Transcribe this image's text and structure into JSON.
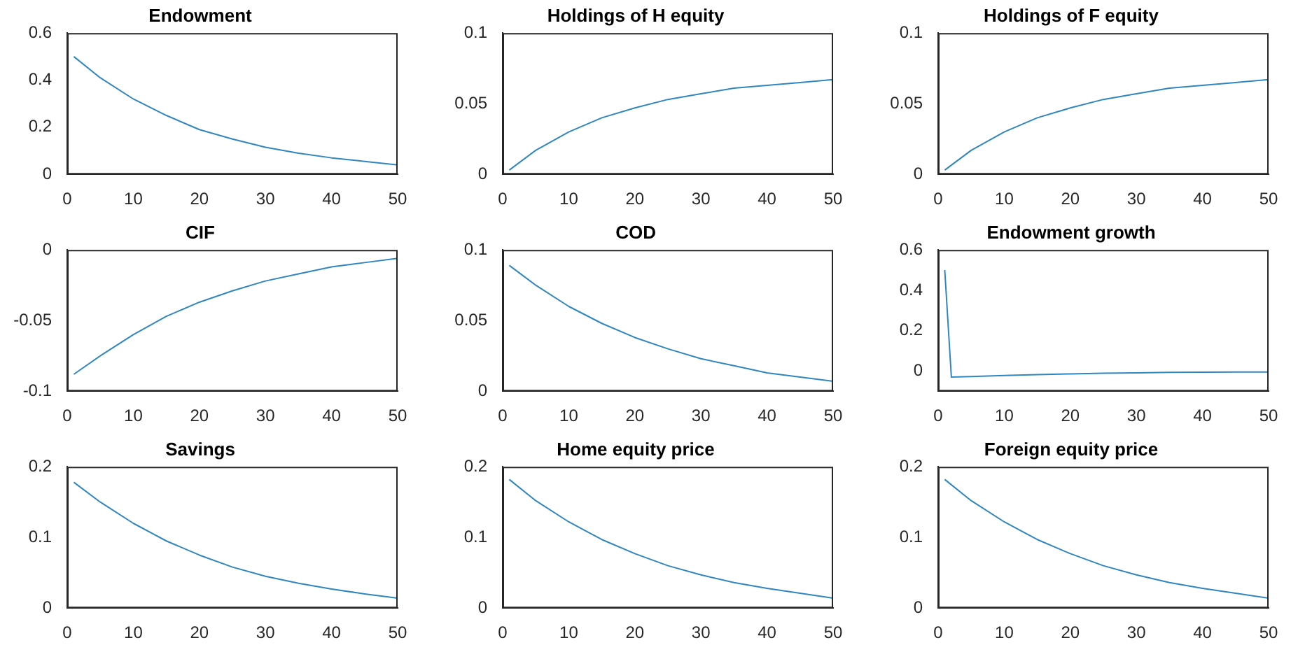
{
  "chart_data": [
    {
      "type": "line",
      "title": "Endowment",
      "x": [
        1,
        5,
        10,
        15,
        20,
        25,
        30,
        35,
        40,
        45,
        50
      ],
      "values": [
        0.5,
        0.41,
        0.32,
        0.25,
        0.19,
        0.15,
        0.115,
        0.09,
        0.07,
        0.055,
        0.04
      ],
      "color": "#2f86c0",
      "xlim": [
        0,
        50
      ],
      "xticks": [
        0,
        10,
        20,
        30,
        40,
        50
      ],
      "ylim": [
        0,
        0.6
      ],
      "yticks": [
        0,
        0.2,
        0.4,
        0.6
      ]
    },
    {
      "type": "line",
      "title": "Holdings of H equity",
      "x": [
        1,
        5,
        10,
        15,
        20,
        25,
        30,
        35,
        40,
        45,
        50
      ],
      "values": [
        0.003,
        0.017,
        0.03,
        0.04,
        0.047,
        0.053,
        0.057,
        0.061,
        0.063,
        0.065,
        0.067
      ],
      "color": "#2f86c0",
      "xlim": [
        0,
        50
      ],
      "xticks": [
        0,
        10,
        20,
        30,
        40,
        50
      ],
      "ylim": [
        0,
        0.1
      ],
      "yticks": [
        0,
        0.05,
        0.1
      ]
    },
    {
      "type": "line",
      "title": "Holdings of F equity",
      "x": [
        1,
        5,
        10,
        15,
        20,
        25,
        30,
        35,
        40,
        45,
        50
      ],
      "values": [
        0.003,
        0.017,
        0.03,
        0.04,
        0.047,
        0.053,
        0.057,
        0.061,
        0.063,
        0.065,
        0.067
      ],
      "color": "#2f86c0",
      "xlim": [
        0,
        50
      ],
      "xticks": [
        0,
        10,
        20,
        30,
        40,
        50
      ],
      "ylim": [
        0,
        0.1
      ],
      "yticks": [
        0,
        0.05,
        0.1
      ]
    },
    {
      "type": "line",
      "title": "CIF",
      "x": [
        1,
        5,
        10,
        15,
        20,
        25,
        30,
        35,
        40,
        45,
        50
      ],
      "values": [
        -0.088,
        -0.075,
        -0.06,
        -0.047,
        -0.037,
        -0.029,
        -0.022,
        -0.017,
        -0.012,
        -0.009,
        -0.006
      ],
      "color": "#2f86c0",
      "xlim": [
        0,
        50
      ],
      "xticks": [
        0,
        10,
        20,
        30,
        40,
        50
      ],
      "ylim": [
        -0.1,
        0
      ],
      "yticks": [
        -0.1,
        -0.05,
        0
      ]
    },
    {
      "type": "line",
      "title": "COD",
      "x": [
        1,
        5,
        10,
        15,
        20,
        25,
        30,
        35,
        40,
        45,
        50
      ],
      "values": [
        0.089,
        0.075,
        0.06,
        0.048,
        0.038,
        0.03,
        0.023,
        0.018,
        0.013,
        0.01,
        0.007
      ],
      "color": "#2f86c0",
      "xlim": [
        0,
        50
      ],
      "xticks": [
        0,
        10,
        20,
        30,
        40,
        50
      ],
      "ylim": [
        0,
        0.1
      ],
      "yticks": [
        0,
        0.05,
        0.1
      ]
    },
    {
      "type": "line",
      "title": "Endowment growth",
      "x": [
        1,
        2,
        5,
        10,
        15,
        20,
        25,
        30,
        35,
        40,
        45,
        50
      ],
      "values": [
        0.5,
        -0.03,
        -0.027,
        -0.022,
        -0.018,
        -0.014,
        -0.011,
        -0.009,
        -0.007,
        -0.006,
        -0.005,
        -0.005
      ],
      "color": "#2f86c0",
      "xlim": [
        0,
        50
      ],
      "xticks": [
        0,
        10,
        20,
        30,
        40,
        50
      ],
      "ylim": [
        -0.1,
        0.6
      ],
      "yticks": [
        0,
        0.2,
        0.4,
        0.6
      ]
    },
    {
      "type": "line",
      "title": "Savings",
      "x": [
        1,
        5,
        10,
        15,
        20,
        25,
        30,
        35,
        40,
        45,
        50
      ],
      "values": [
        0.178,
        0.15,
        0.12,
        0.095,
        0.075,
        0.058,
        0.045,
        0.035,
        0.027,
        0.02,
        0.014
      ],
      "color": "#2f86c0",
      "xlim": [
        0,
        50
      ],
      "xticks": [
        0,
        10,
        20,
        30,
        40,
        50
      ],
      "ylim": [
        0,
        0.2
      ],
      "yticks": [
        0,
        0.1,
        0.2
      ]
    },
    {
      "type": "line",
      "title": "Home equity price",
      "x": [
        1,
        5,
        10,
        15,
        20,
        25,
        30,
        35,
        40,
        45,
        50
      ],
      "values": [
        0.182,
        0.152,
        0.122,
        0.097,
        0.077,
        0.06,
        0.047,
        0.036,
        0.028,
        0.021,
        0.014
      ],
      "color": "#2f86c0",
      "xlim": [
        0,
        50
      ],
      "xticks": [
        0,
        10,
        20,
        30,
        40,
        50
      ],
      "ylim": [
        0,
        0.2
      ],
      "yticks": [
        0,
        0.1,
        0.2
      ]
    },
    {
      "type": "line",
      "title": "Foreign equity price",
      "x": [
        1,
        5,
        10,
        15,
        20,
        25,
        30,
        35,
        40,
        45,
        50
      ],
      "values": [
        0.182,
        0.152,
        0.122,
        0.097,
        0.077,
        0.06,
        0.047,
        0.036,
        0.028,
        0.021,
        0.014
      ],
      "color": "#2f86c0",
      "xlim": [
        0,
        50
      ],
      "xticks": [
        0,
        10,
        20,
        30,
        40,
        50
      ],
      "ylim": [
        0,
        0.2
      ],
      "yticks": [
        0,
        0.1,
        0.2
      ]
    }
  ]
}
